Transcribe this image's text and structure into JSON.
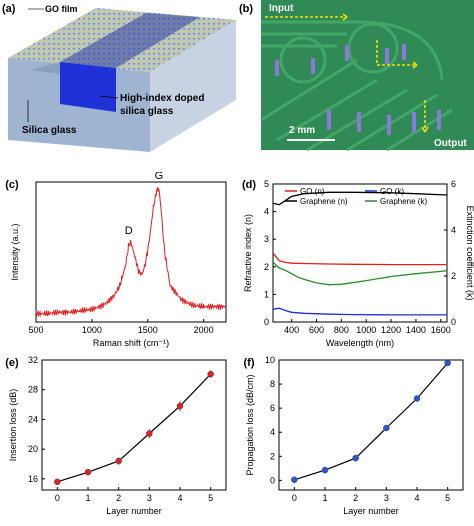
{
  "panel_a": {
    "letter": "(a)",
    "labels": {
      "go_film": "GO film",
      "high_index": "High-index doped",
      "high_index_2": "silica glass",
      "silica": "Silica glass"
    },
    "colors": {
      "go": "#e8d800",
      "waveguide": "#1e32d8",
      "glass": "#9fb4d0"
    }
  },
  "panel_b": {
    "letter": "(b)",
    "labels": {
      "input": "Input",
      "output": "Output",
      "scale": "2 mm"
    },
    "colors": {
      "bg": "#2f8a55",
      "arrow": "#f5e000",
      "patch": "#8a79d8"
    }
  },
  "chart_data": [
    {
      "panel": "(c)",
      "type": "line",
      "title": "",
      "xlabel": "Raman shift (cm⁻¹)",
      "ylabel": "Intensity (a.u.)",
      "xlim": [
        500,
        2200
      ],
      "xticks": [
        500,
        1000,
        1500,
        2000
      ],
      "x": [
        500,
        600,
        700,
        800,
        900,
        1000,
        1100,
        1150,
        1200,
        1250,
        1300,
        1330,
        1350,
        1380,
        1420,
        1450,
        1480,
        1520,
        1550,
        1580,
        1600,
        1620,
        1650,
        1700,
        1800,
        1900,
        2000,
        2100,
        2200
      ],
      "y": [
        0.06,
        0.06,
        0.07,
        0.07,
        0.08,
        0.09,
        0.12,
        0.15,
        0.19,
        0.26,
        0.4,
        0.55,
        0.57,
        0.48,
        0.36,
        0.34,
        0.42,
        0.62,
        0.82,
        0.94,
        0.95,
        0.8,
        0.5,
        0.26,
        0.16,
        0.12,
        0.11,
        0.11,
        0.11
      ],
      "annotations": [
        "D",
        "G"
      ],
      "color": "#e02020"
    },
    {
      "panel": "(d)",
      "type": "line",
      "xlabel": "Wavelength (nm)",
      "ylabel": "Refractive index (n)",
      "y2label": "Extinction coefficient (k)",
      "xlim": [
        250,
        1650
      ],
      "ylim": [
        0,
        5
      ],
      "y2lim": [
        0,
        6
      ],
      "xticks": [
        400,
        600,
        800,
        1000,
        1200,
        1400,
        1600
      ],
      "yticks": [
        0,
        1,
        2,
        3,
        4,
        5
      ],
      "y2ticks": [
        0,
        2,
        4,
        6
      ],
      "legend_position": "top",
      "series": [
        {
          "name": "GO (n)",
          "color": "#e02020",
          "axis": "left",
          "x": [
            250,
            300,
            350,
            400,
            500,
            700,
            900,
            1200,
            1400,
            1650
          ],
          "y": [
            2.5,
            2.22,
            2.16,
            2.13,
            2.12,
            2.1,
            2.09,
            2.08,
            2.08,
            2.08
          ]
        },
        {
          "name": "Graphene (n)",
          "color": "#000000",
          "axis": "left",
          "x": [
            250,
            300,
            350,
            400,
            500,
            700,
            900,
            1200,
            1400,
            1650
          ],
          "y": [
            4.3,
            4.25,
            4.4,
            4.55,
            4.65,
            4.7,
            4.7,
            4.68,
            4.65,
            4.6
          ]
        },
        {
          "name": "GO (k)",
          "color": "#1d2fd0",
          "axis": "right",
          "x": [
            250,
            300,
            350,
            400,
            500,
            700,
            900,
            1200,
            1400,
            1650
          ],
          "y": [
            0.55,
            0.6,
            0.5,
            0.42,
            0.38,
            0.34,
            0.32,
            0.31,
            0.31,
            0.31
          ]
        },
        {
          "name": "Graphene (k)",
          "color": "#2a8a2a",
          "axis": "right",
          "x": [
            250,
            300,
            350,
            400,
            450,
            500,
            600,
            700,
            800,
            1000,
            1200,
            1400,
            1600,
            1650
          ],
          "y": [
            2.6,
            2.35,
            2.25,
            2.1,
            1.95,
            1.85,
            1.7,
            1.62,
            1.64,
            1.8,
            1.98,
            2.1,
            2.2,
            2.23
          ]
        }
      ]
    },
    {
      "panel": "(e)",
      "type": "line",
      "xlabel": "Layer number",
      "ylabel": "Insertion loss (dB)",
      "xlim": [
        -0.5,
        5.5
      ],
      "ylim": [
        14.5,
        32
      ],
      "xticks": [
        0,
        1,
        2,
        3,
        4,
        5
      ],
      "yticks": [
        16,
        20,
        24,
        28,
        32
      ],
      "x": [
        0,
        1,
        2,
        3,
        4,
        5
      ],
      "y": [
        15.6,
        16.9,
        18.4,
        22.1,
        25.8,
        30.1
      ],
      "err": [
        0.2,
        0.4,
        0.5,
        0.6,
        0.7,
        0.5
      ],
      "marker_color": "#e02020"
    },
    {
      "panel": "(f)",
      "type": "line",
      "xlabel": "Layer number",
      "ylabel": "Propagation loss (dB/cm)",
      "xlim": [
        -0.5,
        5.5
      ],
      "ylim": [
        -0.8,
        10
      ],
      "xticks": [
        0,
        1,
        2,
        3,
        4,
        5
      ],
      "yticks": [
        0,
        2,
        4,
        6,
        8,
        10
      ],
      "x": [
        0,
        1,
        2,
        3,
        4,
        5
      ],
      "y": [
        0.05,
        0.85,
        1.85,
        4.35,
        6.8,
        9.75
      ],
      "err": [
        0.05,
        0.25,
        0.3,
        0.2,
        0.2,
        0.1
      ],
      "marker_color": "#2a55d8"
    }
  ]
}
